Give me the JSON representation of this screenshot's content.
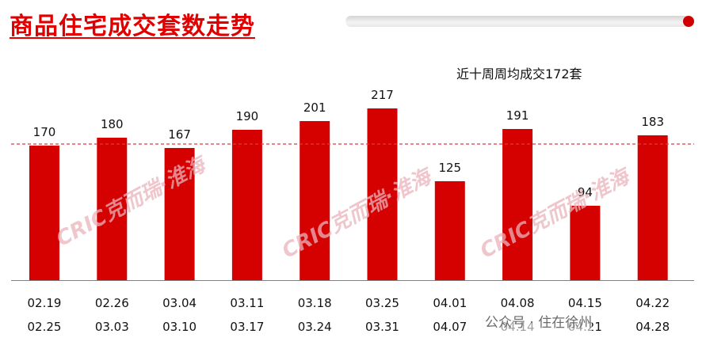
{
  "title": "商品住宅成交套数走势",
  "subtitle": "近十周周均成交172套",
  "watermark": "CRIC克而瑞·淮海",
  "footer": "公众号 · 住在徐州",
  "colors": {
    "bar": "#d50000",
    "title": "#e00000",
    "average_line": "#e23b3b",
    "axis": "#808080"
  },
  "chart_data": {
    "type": "bar",
    "categories": [
      [
        "02.19",
        "02.25"
      ],
      [
        "02.26",
        "03.03"
      ],
      [
        "03.04",
        "03.10"
      ],
      [
        "03.11",
        "03.17"
      ],
      [
        "03.18",
        "03.24"
      ],
      [
        "03.25",
        "03.31"
      ],
      [
        "04.01",
        "04.07"
      ],
      [
        "04.08",
        "04.14"
      ],
      [
        "04.15",
        "04.21"
      ],
      [
        "04.22",
        "04.28"
      ]
    ],
    "values": [
      170,
      180,
      167,
      190,
      201,
      217,
      125,
      191,
      94,
      183
    ],
    "average": 172,
    "ylim": [
      0,
      250
    ],
    "data_labels": true,
    "grid": false
  }
}
